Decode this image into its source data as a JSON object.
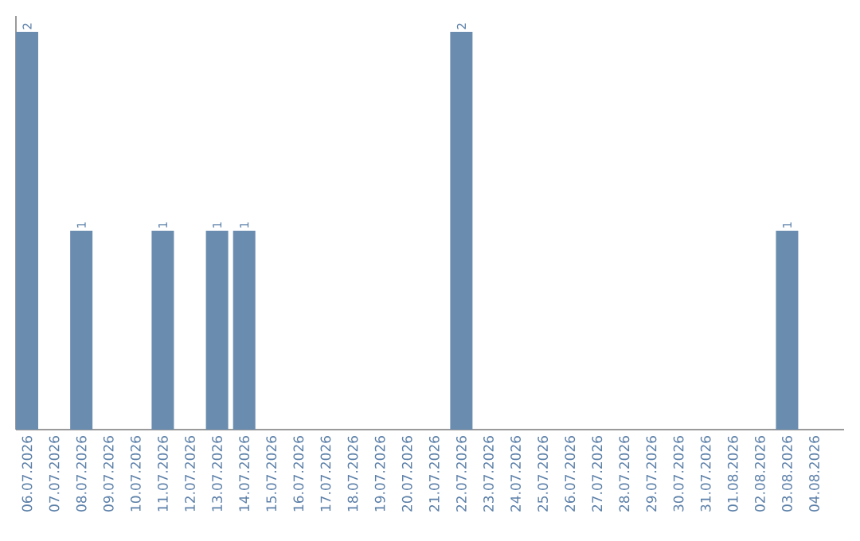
{
  "chart_data": {
    "type": "bar",
    "categories": [
      "06.07.2026",
      "07.07.2026",
      "08.07.2026",
      "09.07.2026",
      "10.07.2026",
      "11.07.2026",
      "12.07.2026",
      "13.07.2026",
      "14.07.2026",
      "15.07.2026",
      "16.07.2026",
      "17.07.2026",
      "18.07.2026",
      "19.07.2026",
      "20.07.2026",
      "21.07.2026",
      "22.07.2026",
      "23.07.2026",
      "24.07.2026",
      "25.07.2026",
      "26.07.2026",
      "27.07.2026",
      "28.07.2026",
      "29.07.2026",
      "30.07.2026",
      "31.07.2026",
      "01.08.2026",
      "02.08.2026",
      "03.08.2026",
      "04.08.2026"
    ],
    "values": [
      2,
      0,
      1,
      0,
      0,
      1,
      0,
      1,
      1,
      0,
      0,
      0,
      0,
      0,
      0,
      0,
      2,
      0,
      0,
      0,
      0,
      0,
      0,
      0,
      0,
      0,
      0,
      0,
      1,
      0
    ],
    "value_labels": [
      "2",
      null,
      "1",
      null,
      null,
      "1",
      null,
      "1",
      "1",
      null,
      null,
      null,
      null,
      null,
      null,
      null,
      "2",
      null,
      null,
      null,
      null,
      null,
      null,
      null,
      null,
      null,
      null,
      null,
      "1",
      null
    ],
    "color": "#6a8caf",
    "ylim": [
      0,
      2.08
    ]
  }
}
